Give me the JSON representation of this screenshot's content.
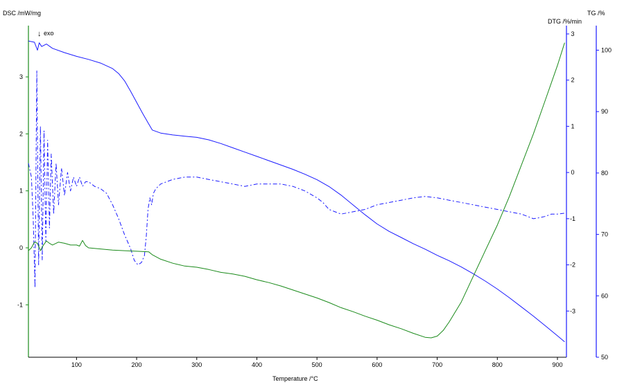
{
  "chart_data": {
    "type": "line",
    "xlabel": "Temperature /°C",
    "xlim": [
      20,
      915
    ],
    "xticks": [
      100,
      200,
      300,
      400,
      500,
      600,
      700,
      800,
      900
    ],
    "axes": {
      "dsc": {
        "label": "DSC /mW/mg",
        "ylim": [
          -1.92,
          3.9
        ],
        "ticks": [
          -1,
          0,
          1,
          2,
          3
        ],
        "color": "#1a8a1a"
      },
      "dtg": {
        "label": "DTG /%/min",
        "ylim": [
          -4.0,
          3.18
        ],
        "ticks": [
          -3,
          -2,
          -1,
          0,
          1,
          2,
          3
        ],
        "color": "#1a1aff"
      },
      "tg": {
        "label": "TG /%",
        "ylim": [
          50,
          104
        ],
        "ticks": [
          50,
          60,
          70,
          80,
          90,
          100
        ],
        "color": "#1a1aff"
      }
    },
    "annotation": {
      "arrow": "↓",
      "text": "exo"
    },
    "series": [
      {
        "axis": "tg",
        "color": "#1a1aff",
        "dash": "none",
        "x": [
          20,
          30,
          35,
          38,
          42,
          50,
          60,
          80,
          100,
          120,
          140,
          160,
          170,
          180,
          190,
          200,
          210,
          220,
          226,
          240,
          260,
          280,
          300,
          320,
          340,
          360,
          380,
          400,
          420,
          440,
          460,
          480,
          500,
          520,
          540,
          560,
          580,
          600,
          620,
          640,
          660,
          680,
          700,
          720,
          740,
          760,
          780,
          800,
          820,
          840,
          860,
          880,
          900,
          912
        ],
        "y": [
          101.5,
          101.3,
          100.0,
          101.2,
          100.6,
          101.0,
          100.3,
          99.6,
          99.0,
          98.5,
          97.9,
          97.0,
          96.2,
          95.0,
          93.3,
          91.5,
          89.7,
          88.0,
          87.0,
          86.5,
          86.2,
          86.0,
          85.8,
          85.4,
          84.8,
          84.1,
          83.4,
          82.7,
          82.0,
          81.3,
          80.6,
          79.8,
          78.9,
          77.8,
          76.4,
          74.8,
          73.2,
          71.7,
          70.5,
          69.5,
          68.5,
          67.6,
          66.6,
          65.7,
          64.7,
          63.6,
          62.4,
          61.1,
          59.7,
          58.2,
          56.7,
          55.1,
          53.5,
          52.5
        ]
      },
      {
        "axis": "dtg",
        "color": "#1a1aff",
        "dash": "6,3,2,3",
        "x": [
          20,
          25,
          28,
          31,
          34,
          37,
          40,
          43,
          46,
          49,
          52,
          55,
          58,
          62,
          66,
          70,
          75,
          80,
          85,
          90,
          95,
          100,
          105,
          110,
          115,
          120,
          130,
          140,
          150,
          160,
          170,
          180,
          190,
          196,
          202,
          208,
          213,
          216,
          219,
          222,
          225,
          228,
          232,
          240,
          260,
          280,
          300,
          320,
          340,
          360,
          380,
          400,
          420,
          440,
          460,
          480,
          500,
          510,
          520,
          530,
          540,
          560,
          580,
          600,
          620,
          640,
          660,
          680,
          700,
          720,
          740,
          760,
          780,
          800,
          820,
          840,
          850,
          860,
          870,
          880,
          890,
          900,
          912
        ],
        "y": [
          0.2,
          -0.1,
          -1.0,
          -2.5,
          2.2,
          -2.0,
          1.0,
          -1.9,
          0.9,
          -1.5,
          0.7,
          -1.2,
          0.4,
          -0.9,
          0.2,
          -0.7,
          0.1,
          -0.5,
          0.0,
          -0.4,
          -0.1,
          -0.3,
          -0.1,
          -0.3,
          -0.2,
          -0.2,
          -0.3,
          -0.35,
          -0.45,
          -0.7,
          -1.0,
          -1.35,
          -1.65,
          -1.9,
          -2.0,
          -1.95,
          -1.8,
          -1.4,
          -0.8,
          -0.55,
          -0.7,
          -0.45,
          -0.35,
          -0.25,
          -0.15,
          -0.1,
          -0.1,
          -0.15,
          -0.2,
          -0.25,
          -0.3,
          -0.25,
          -0.25,
          -0.25,
          -0.3,
          -0.4,
          -0.55,
          -0.65,
          -0.8,
          -0.85,
          -0.9,
          -0.85,
          -0.8,
          -0.7,
          -0.65,
          -0.6,
          -0.55,
          -0.52,
          -0.55,
          -0.6,
          -0.65,
          -0.7,
          -0.75,
          -0.8,
          -0.85,
          -0.9,
          -0.95,
          -1.0,
          -0.98,
          -0.95,
          -0.9,
          -0.9,
          -0.88
        ]
      },
      {
        "axis": "dsc",
        "color": "#1a8a1a",
        "dash": "none",
        "x": [
          20,
          25,
          30,
          35,
          40,
          45,
          50,
          55,
          60,
          70,
          80,
          90,
          100,
          105,
          110,
          115,
          120,
          140,
          160,
          180,
          200,
          220,
          226,
          240,
          260,
          280,
          300,
          320,
          340,
          360,
          380,
          400,
          420,
          440,
          460,
          480,
          500,
          520,
          540,
          560,
          580,
          600,
          620,
          640,
          660,
          680,
          690,
          700,
          710,
          720,
          740,
          760,
          780,
          800,
          820,
          840,
          860,
          880,
          900,
          912
        ],
        "y": [
          -0.05,
          0.0,
          0.1,
          0.08,
          -0.05,
          0.05,
          0.12,
          0.08,
          0.05,
          0.1,
          0.08,
          0.05,
          0.05,
          0.03,
          0.13,
          0.04,
          0.0,
          -0.02,
          -0.04,
          -0.05,
          -0.06,
          -0.07,
          -0.12,
          -0.2,
          -0.27,
          -0.32,
          -0.34,
          -0.38,
          -0.43,
          -0.46,
          -0.5,
          -0.56,
          -0.61,
          -0.67,
          -0.74,
          -0.81,
          -0.88,
          -0.96,
          -1.05,
          -1.12,
          -1.2,
          -1.27,
          -1.35,
          -1.42,
          -1.5,
          -1.57,
          -1.58,
          -1.55,
          -1.45,
          -1.3,
          -0.95,
          -0.5,
          -0.05,
          0.4,
          0.9,
          1.45,
          2.0,
          2.6,
          3.2,
          3.6
        ]
      }
    ]
  }
}
